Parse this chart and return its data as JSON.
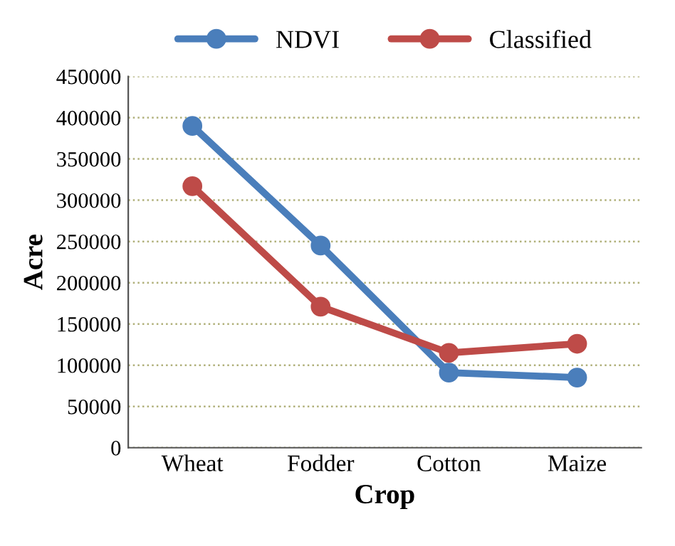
{
  "chart_data": {
    "type": "line",
    "xlabel": "Crop",
    "ylabel": "Acre",
    "categories": [
      "Wheat",
      "Fodder",
      "Cotton",
      "Maize"
    ],
    "series": [
      {
        "name": "NDVI",
        "color": "#4a7ebb",
        "values": [
          390000,
          245000,
          91000,
          85000
        ]
      },
      {
        "name": "Classified",
        "color": "#be4b48",
        "values": [
          317000,
          171000,
          115000,
          126000
        ]
      }
    ],
    "ylim": [
      0,
      450000
    ],
    "yticks": [
      0,
      50000,
      100000,
      150000,
      200000,
      250000,
      300000,
      350000,
      400000,
      450000
    ],
    "grid": "y",
    "legend": "top",
    "marker": "circle",
    "line_style": "solid"
  }
}
